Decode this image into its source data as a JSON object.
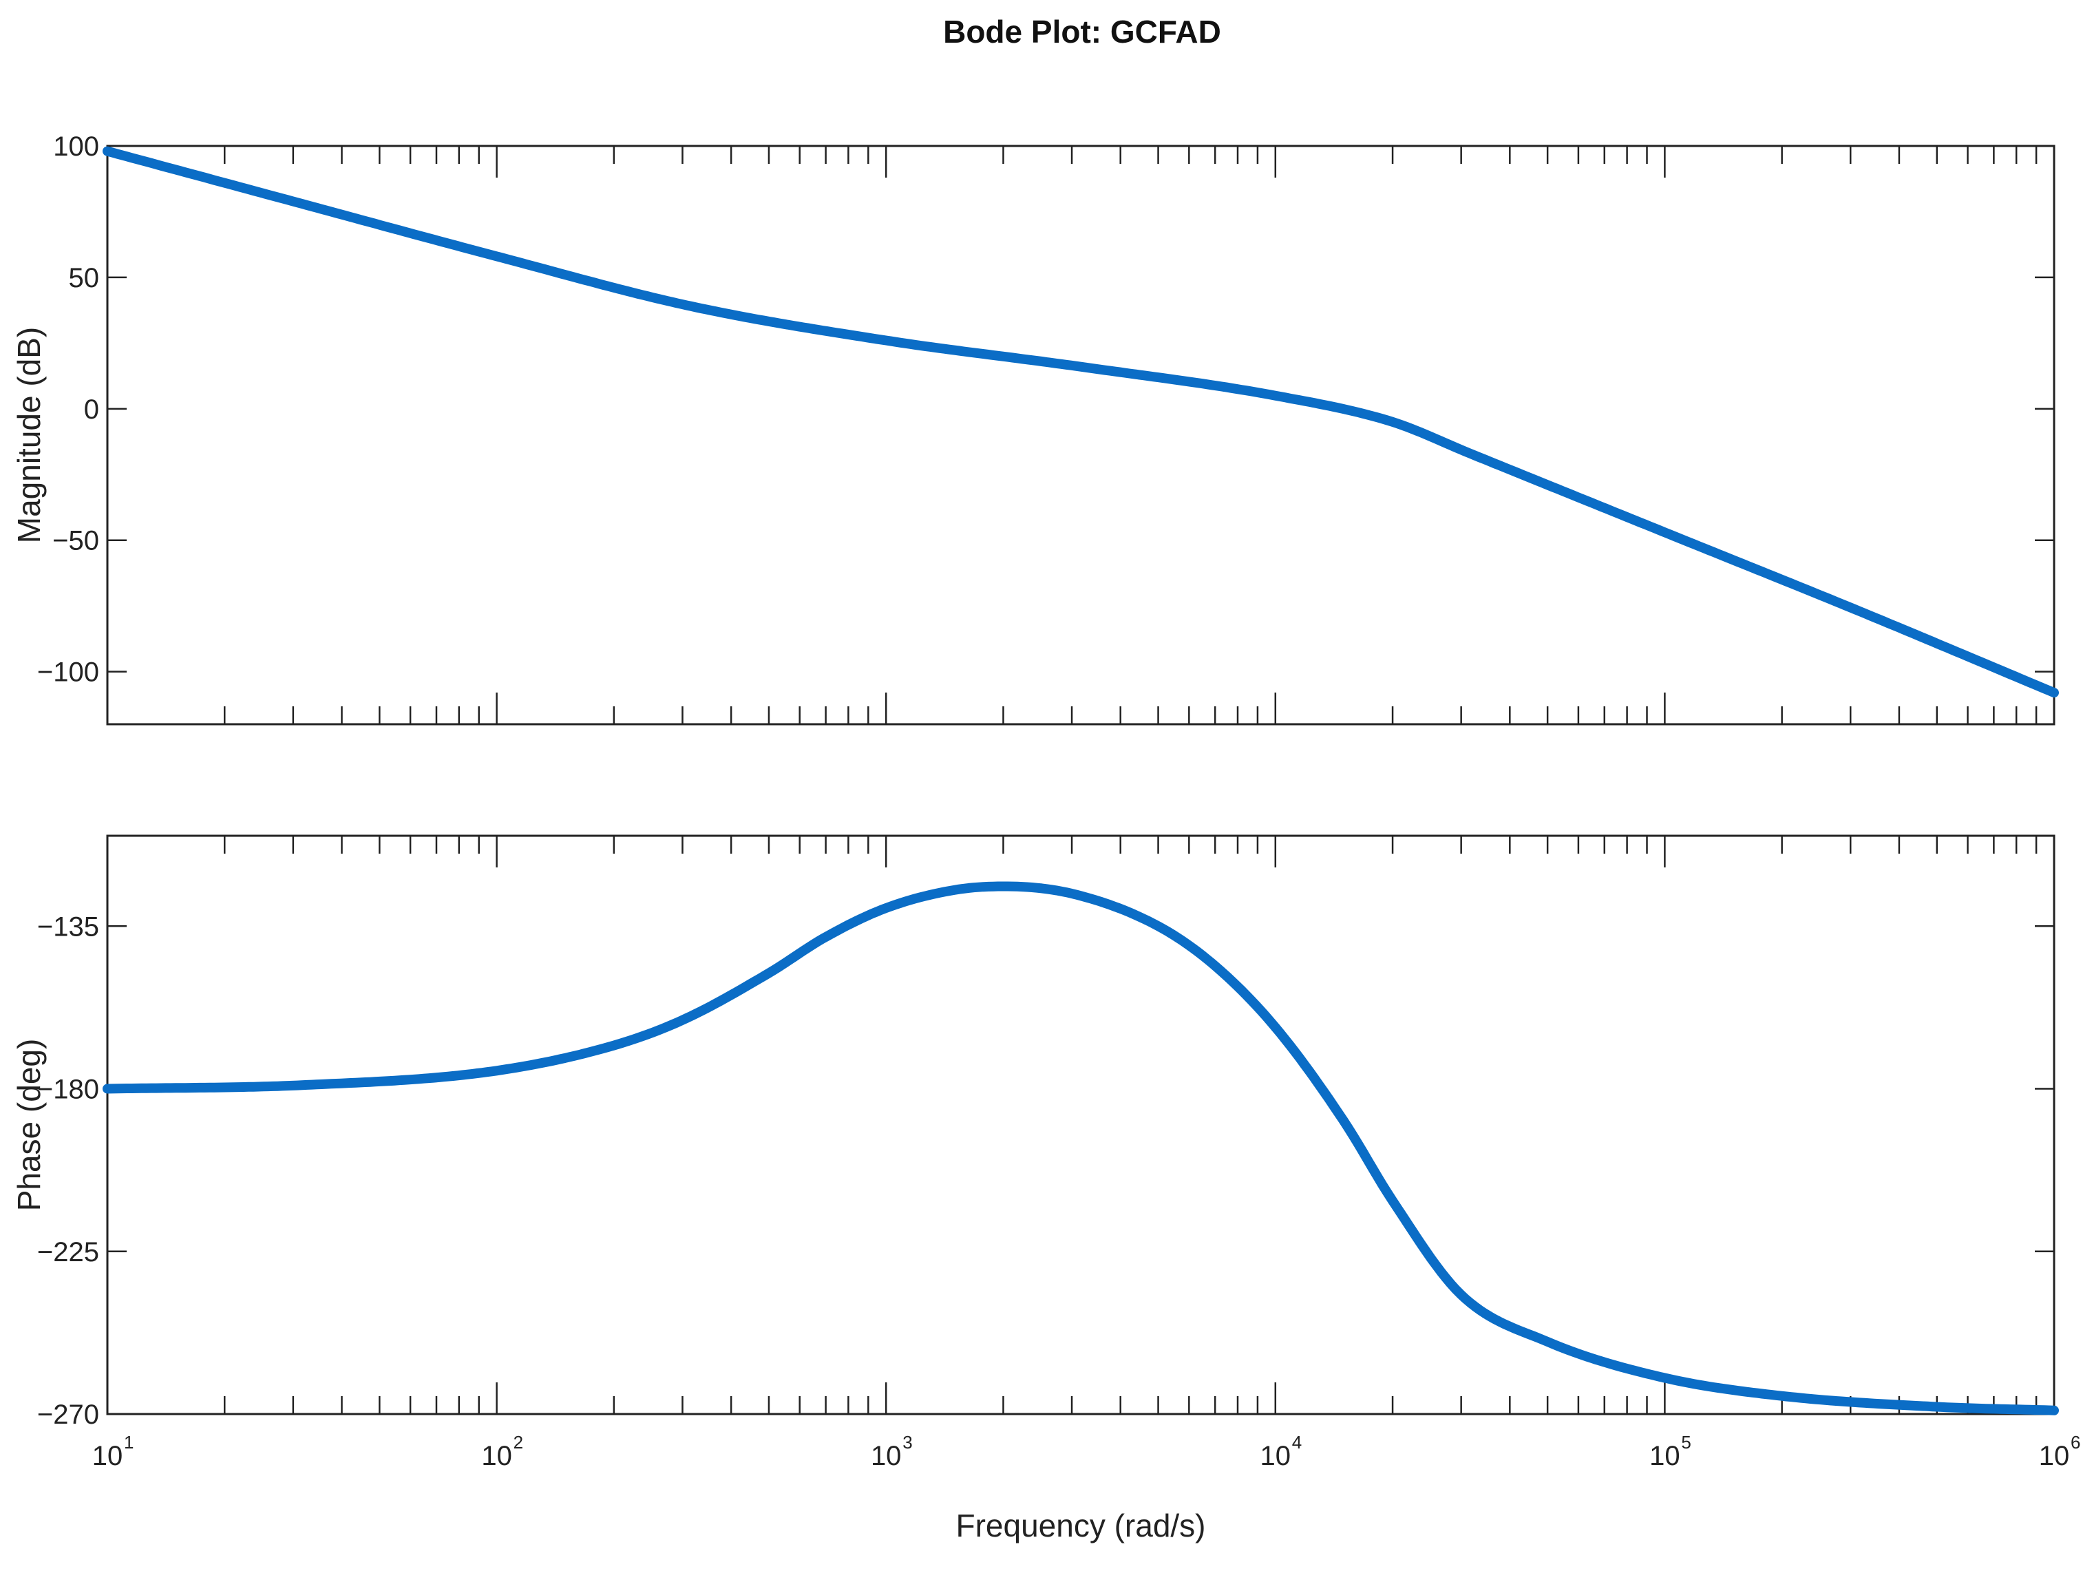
{
  "chart_data": {
    "type": "line",
    "title": "Bode Plot: GCFAD",
    "xlabel": "Frequency (rad/s)",
    "x_scale": "log",
    "xlim": [
      10,
      1000000
    ],
    "x_ticks": [
      {
        "base": "10",
        "exp": "1"
      },
      {
        "base": "10",
        "exp": "2"
      },
      {
        "base": "10",
        "exp": "3"
      },
      {
        "base": "10",
        "exp": "4"
      },
      {
        "base": "10",
        "exp": "5"
      },
      {
        "base": "10",
        "exp": "6"
      }
    ],
    "line_color": "#0B6DC6",
    "grid": false,
    "panels": [
      {
        "name": "magnitude",
        "ylabel": "Magnitude (dB)",
        "ylim": [
          -120,
          100
        ],
        "y_ticks": [
          100,
          50,
          0,
          -50,
          -100
        ],
        "y_tick_labels": [
          "100",
          "50",
          "0",
          "−50",
          "−100"
        ],
        "x": [
          10,
          31.6,
          100,
          316,
          1000,
          3162,
          10000,
          20000,
          31623,
          100000,
          316228,
          1000000
        ],
        "y": [
          98,
          78,
          58,
          39,
          26,
          16,
          5,
          -5,
          -17,
          -47,
          -77,
          -108
        ]
      },
      {
        "name": "phase",
        "ylabel": "Phase (deg)",
        "ylim": [
          -270,
          -110
        ],
        "y_ticks": [
          -135,
          -180,
          -225,
          -270
        ],
        "y_tick_labels": [
          "−135",
          "−180",
          "−225",
          "−270"
        ],
        "x": [
          10,
          31.6,
          100,
          200,
          300,
          500,
          700,
          1000,
          1500,
          2000,
          3000,
          5000,
          7000,
          10000,
          15000,
          20000,
          30000,
          50000,
          100000,
          200000,
          500000,
          1000000
        ],
        "y": [
          -180,
          -179,
          -175,
          -168,
          -161,
          -148,
          -138,
          -130,
          -125,
          -124,
          -126,
          -135,
          -146,
          -163,
          -189,
          -211,
          -237,
          -250,
          -260,
          -265,
          -268,
          -269
        ]
      }
    ]
  }
}
